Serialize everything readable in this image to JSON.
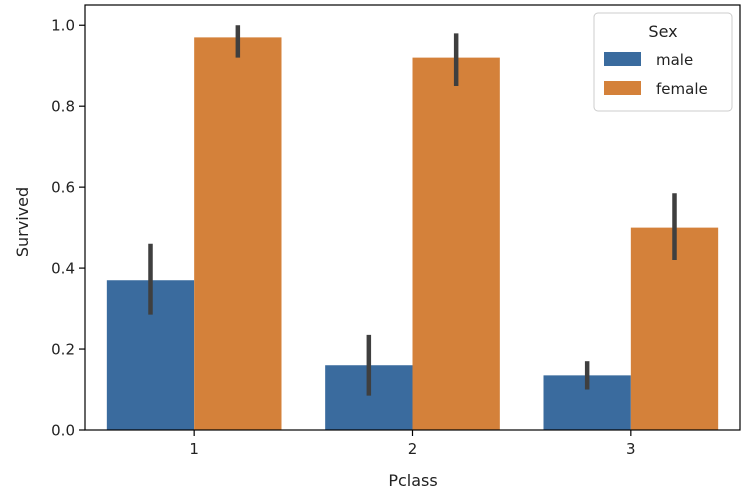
{
  "chart_data": {
    "type": "bar",
    "title": "",
    "xlabel": "Pclass",
    "ylabel": "Survived",
    "categories": [
      "1",
      "2",
      "3"
    ],
    "ylim": [
      0,
      1.05
    ],
    "yticks": [
      "0.0",
      "0.2",
      "0.4",
      "0.6",
      "0.8",
      "1.0"
    ],
    "grid": false,
    "legend": {
      "title": "Sex",
      "placement": "top-right"
    },
    "series": [
      {
        "name": "male",
        "color": "#3a6b9e",
        "values": [
          0.37,
          0.16,
          0.135
        ],
        "ci_low": [
          0.285,
          0.085,
          0.1
        ],
        "ci_high": [
          0.46,
          0.235,
          0.17
        ]
      },
      {
        "name": "female",
        "color": "#d4813a",
        "values": [
          0.97,
          0.92,
          0.5
        ],
        "ci_low": [
          0.92,
          0.85,
          0.42
        ],
        "ci_high": [
          1.0,
          0.98,
          0.585
        ]
      }
    ],
    "errorbar_color": "#3f3f3f"
  }
}
